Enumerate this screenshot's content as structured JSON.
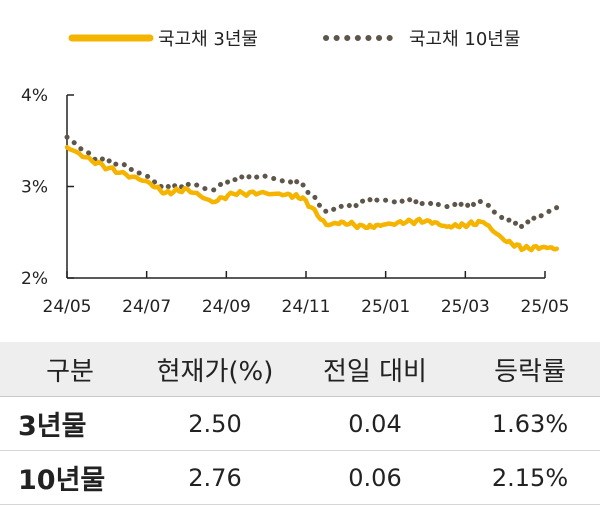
{
  "chart_data": {
    "type": "line",
    "x_tick_labels": [
      "24/05",
      "24/07",
      "24/09",
      "24/11",
      "25/01",
      "25/03",
      "25/05"
    ],
    "y_tick_labels": [
      "4%",
      "3%",
      "2%"
    ],
    "ylim": [
      2,
      4
    ],
    "grid": false,
    "legend_placement": "top",
    "series": [
      {
        "name": "국고채 3년물",
        "color": "#f5b400",
        "style": "solid",
        "x": [
          "2024-05-01",
          "2024-05-20",
          "2024-06-10",
          "2024-06-30",
          "2024-07-15",
          "2024-08-01",
          "2024-08-20",
          "2024-09-05",
          "2024-09-25",
          "2024-10-15",
          "2024-10-28",
          "2024-11-15",
          "2024-11-28",
          "2024-12-15",
          "2024-12-28",
          "2025-01-15",
          "2025-01-31",
          "2025-02-15",
          "2025-02-28",
          "2025-03-15",
          "2025-03-31",
          "2025-04-15",
          "2025-04-30",
          "2025-05-10"
        ],
        "values": [
          3.43,
          3.28,
          3.15,
          3.06,
          2.93,
          2.97,
          2.83,
          2.92,
          2.93,
          2.91,
          2.88,
          2.58,
          2.61,
          2.55,
          2.58,
          2.61,
          2.63,
          2.56,
          2.58,
          2.61,
          2.41,
          2.32,
          2.34,
          2.32
        ]
      },
      {
        "name": "국고채 10년물",
        "color": "#5e564a",
        "style": "dotted",
        "x": [
          "2024-05-01",
          "2024-05-20",
          "2024-06-10",
          "2024-06-30",
          "2024-07-15",
          "2024-08-01",
          "2024-08-20",
          "2024-09-05",
          "2024-09-25",
          "2024-10-15",
          "2024-10-28",
          "2024-11-15",
          "2024-11-28",
          "2024-12-15",
          "2024-12-28",
          "2025-01-15",
          "2025-01-31",
          "2025-02-15",
          "2025-02-28",
          "2025-03-15",
          "2025-03-31",
          "2025-04-15",
          "2025-04-30",
          "2025-05-10"
        ],
        "values": [
          3.54,
          3.32,
          3.25,
          3.12,
          2.98,
          3.03,
          2.96,
          3.08,
          3.12,
          3.06,
          3.02,
          2.72,
          2.78,
          2.83,
          2.85,
          2.84,
          2.83,
          2.78,
          2.8,
          2.83,
          2.63,
          2.58,
          2.7,
          2.77
        ]
      }
    ]
  },
  "table": {
    "headers": [
      "구분",
      "현재가(%)",
      "전일 대비",
      "등락률"
    ],
    "rows": [
      {
        "label": "3년물",
        "current": "2.50",
        "change": "0.04",
        "rate": "1.63%"
      },
      {
        "label": "10년물",
        "current": "2.76",
        "change": "0.06",
        "rate": "2.15%"
      }
    ]
  }
}
